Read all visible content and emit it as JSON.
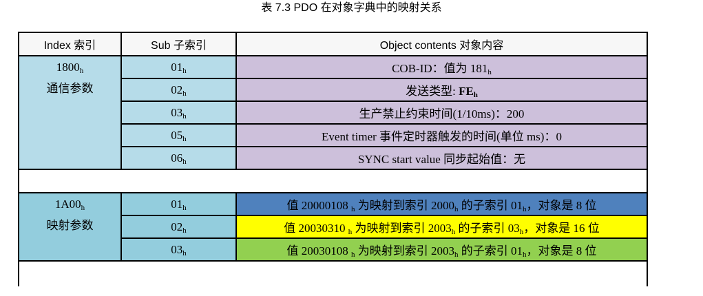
{
  "caption": "表 7.3 PDO 在对象字典中的映射关系",
  "headers": [
    "Index 索引",
    "Sub 子索引",
    "Object contents 对象内容"
  ],
  "colors": {
    "comm_bg": "#b6dce9",
    "map_bg": "#93cddd",
    "content_bg": "#cdc0db",
    "row1": "#4f81bd",
    "row2": "#ffff00",
    "row3": "#92d050"
  },
  "groups": [
    {
      "index": [
        {
          "t": "1800"
        },
        {
          "t": "h",
          "sub": true
        }
      ],
      "index_name": "通信参数",
      "rows": [
        {
          "sub": [
            {
              "t": "01"
            },
            {
              "t": "h",
              "sub": true
            }
          ],
          "content": [
            {
              "t": "COB-ID：值为 181"
            },
            {
              "t": "h",
              "sub": true
            }
          ]
        },
        {
          "sub": [
            {
              "t": "02"
            },
            {
              "t": "h",
              "sub": true
            }
          ],
          "content": [
            {
              "t": "发送类型: "
            },
            {
              "t": "FE",
              "bold": true
            },
            {
              "t": "h",
              "sub": true,
              "bold": true
            }
          ]
        },
        {
          "sub": [
            {
              "t": "03"
            },
            {
              "t": "h",
              "sub": true
            }
          ],
          "content": [
            {
              "t": "生产禁止约束时间(1/10ms)：200"
            }
          ]
        },
        {
          "sub": [
            {
              "t": "05"
            },
            {
              "t": "h",
              "sub": true
            }
          ],
          "content": [
            {
              "t": "Event timer 事件定时器触发的时间(单位 ms)：0"
            }
          ]
        },
        {
          "sub": [
            {
              "t": "06"
            },
            {
              "t": "h",
              "sub": true
            }
          ],
          "content": [
            {
              "t": "SYNC start value 同步起始值：无"
            }
          ]
        }
      ]
    },
    {
      "index": [
        {
          "t": "1A00"
        },
        {
          "t": "h",
          "sub": true
        }
      ],
      "index_name": "映射参数",
      "rows": [
        {
          "sub": [
            {
              "t": "01"
            },
            {
              "t": "h",
              "sub": true
            }
          ],
          "content": [
            {
              "t": "值 20000108 "
            },
            {
              "t": "h",
              "sub": true
            },
            {
              "t": " 为映射到索引 2000"
            },
            {
              "t": "h",
              "sub": true
            },
            {
              "t": " 的子索引 01"
            },
            {
              "t": "h",
              "sub": true
            },
            {
              "t": "，对象是 8 位"
            }
          ]
        },
        {
          "sub": [
            {
              "t": "02"
            },
            {
              "t": "h",
              "sub": true
            }
          ],
          "content": [
            {
              "t": "值 20030310 "
            },
            {
              "t": "h",
              "sub": true
            },
            {
              "t": " 为映射到索引 2003"
            },
            {
              "t": "h",
              "sub": true
            },
            {
              "t": " 的子索引 03"
            },
            {
              "t": "h",
              "sub": true
            },
            {
              "t": "，对象是 16 位"
            }
          ]
        },
        {
          "sub": [
            {
              "t": "03"
            },
            {
              "t": "h",
              "sub": true
            }
          ],
          "content": [
            {
              "t": "值 20030108 "
            },
            {
              "t": "h",
              "sub": true
            },
            {
              "t": " 为映射到索引 2003"
            },
            {
              "t": "h",
              "sub": true
            },
            {
              "t": " 的子索引 01"
            },
            {
              "t": "h",
              "sub": true
            },
            {
              "t": "，对象是 8 位"
            }
          ]
        }
      ]
    }
  ]
}
